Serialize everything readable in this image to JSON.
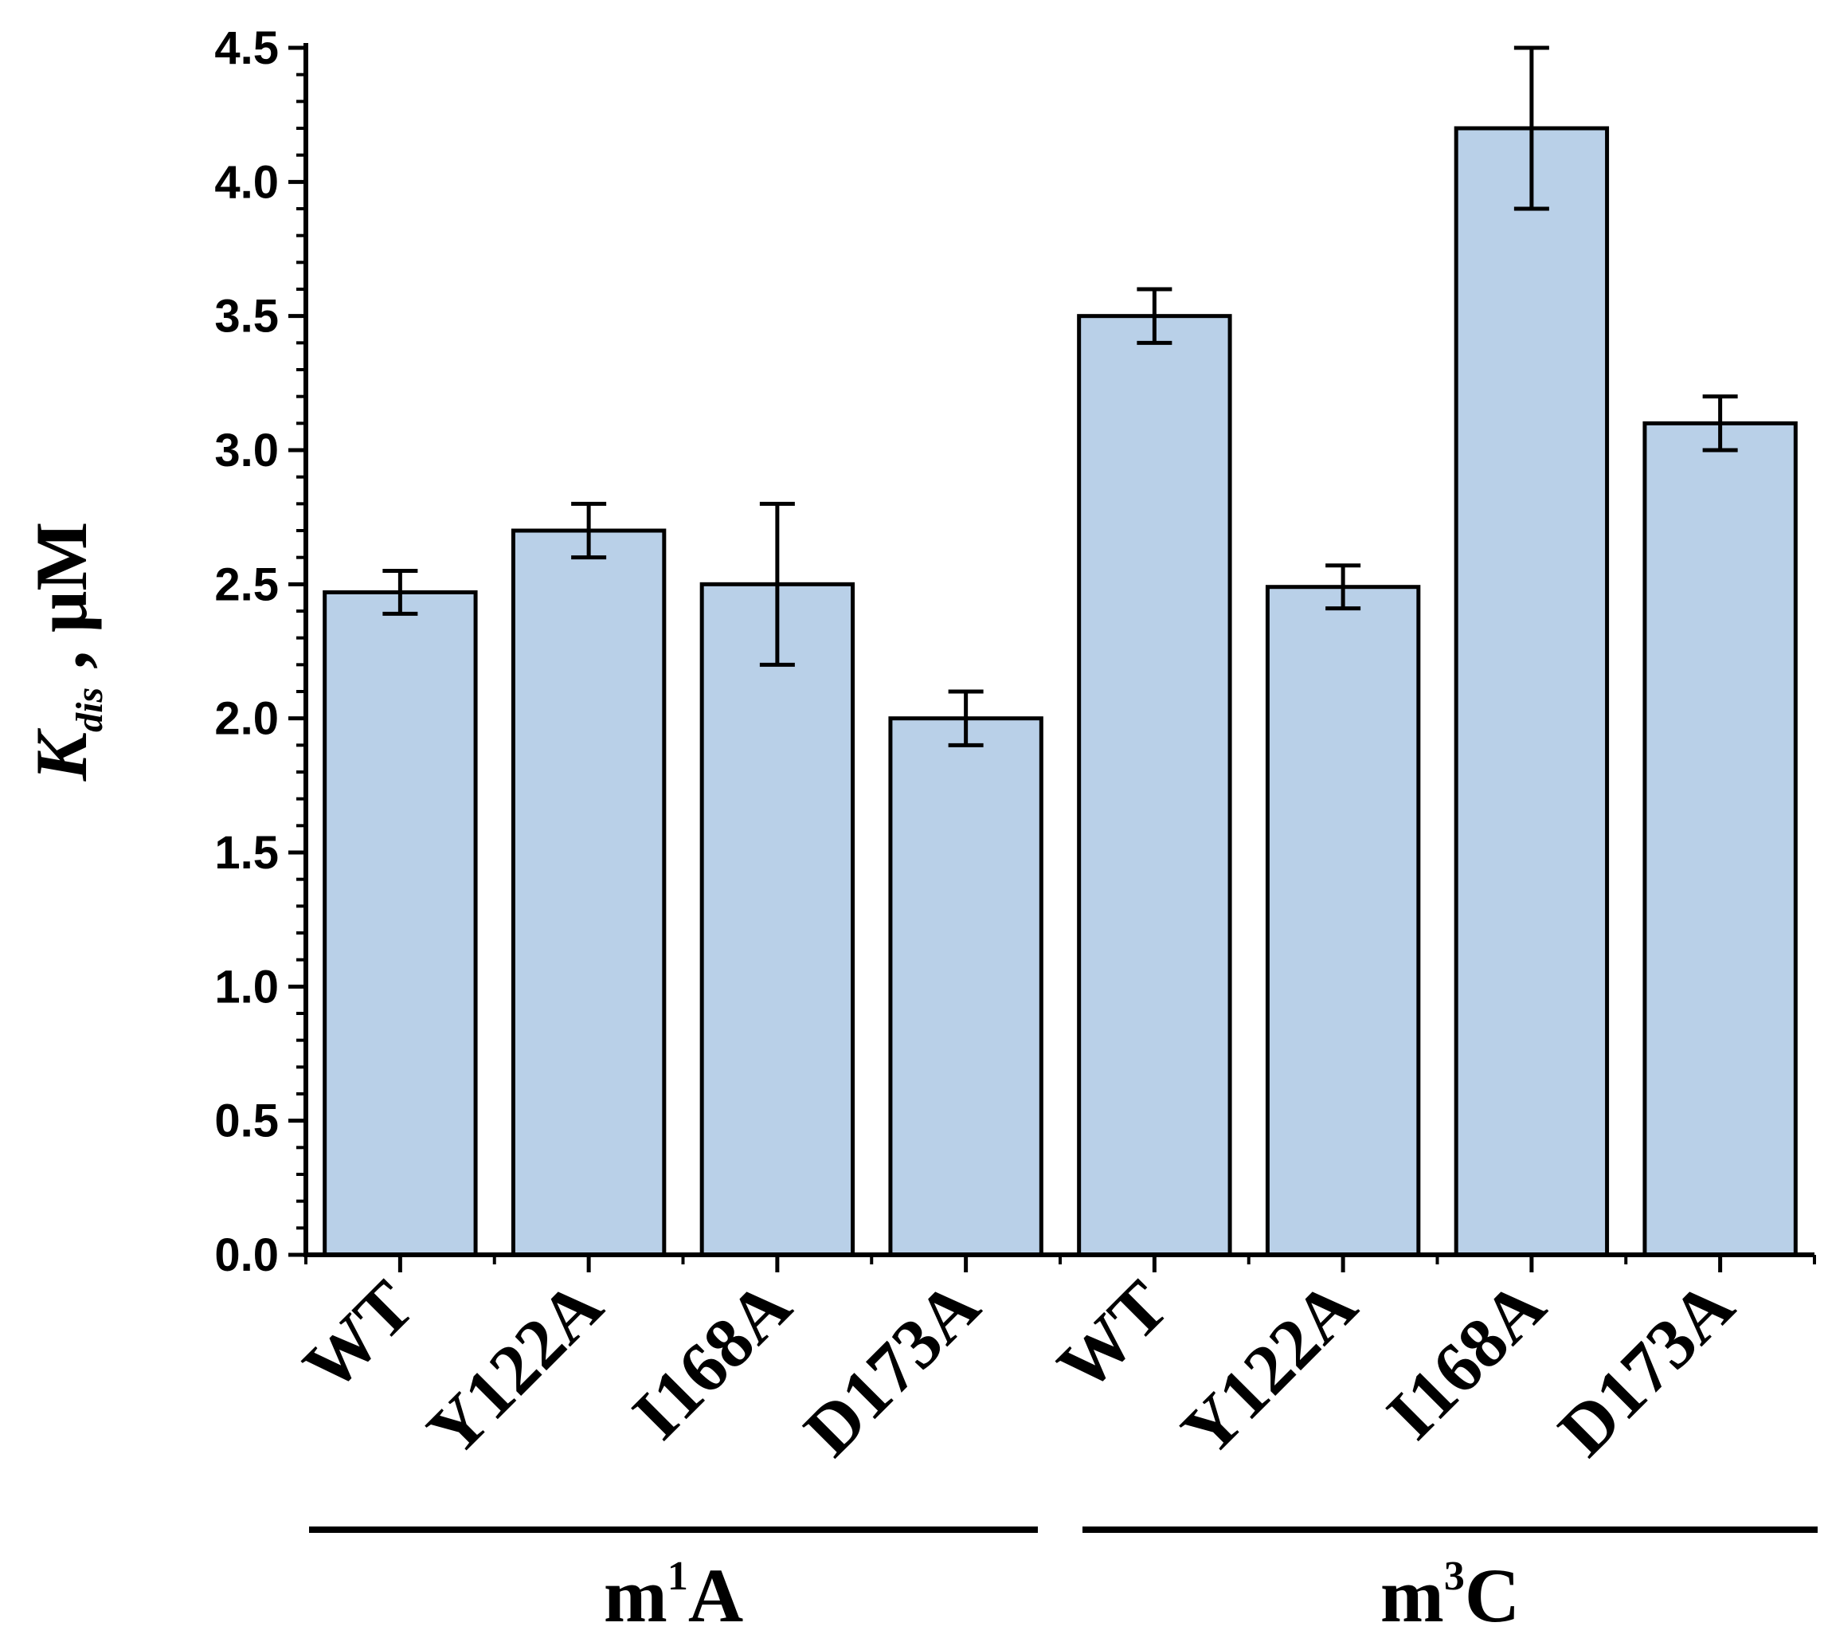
{
  "chart_data": {
    "type": "bar",
    "categories": [
      "WT",
      "Y122A",
      "I168A",
      "D173A",
      "WT",
      "Y122A",
      "I168A",
      "D173A"
    ],
    "values": [
      2.47,
      2.7,
      2.5,
      2.0,
      3.5,
      2.49,
      4.2,
      3.1
    ],
    "errors": [
      0.08,
      0.1,
      0.3,
      0.1,
      0.1,
      0.08,
      0.3,
      0.1
    ],
    "groups": [
      {
        "label": "m¹A",
        "base": "m",
        "sup": "1",
        "tail": "A",
        "indices": [
          0,
          1,
          2,
          3
        ]
      },
      {
        "label": "m³C",
        "base": "m",
        "sup": "3",
        "tail": "C",
        "indices": [
          4,
          5,
          6,
          7
        ]
      }
    ],
    "ylabel": {
      "main": "K",
      "sub": "dis",
      "unit": " , μM"
    },
    "ylim": [
      0,
      4.5
    ],
    "yticks": [
      "0.0",
      "0.5",
      "1.0",
      "1.5",
      "2.0",
      "2.5",
      "3.0",
      "3.5",
      "4.0",
      "4.5"
    ],
    "bar_color": "#b9d0e8",
    "edge_color": "#000000",
    "grid": false
  }
}
